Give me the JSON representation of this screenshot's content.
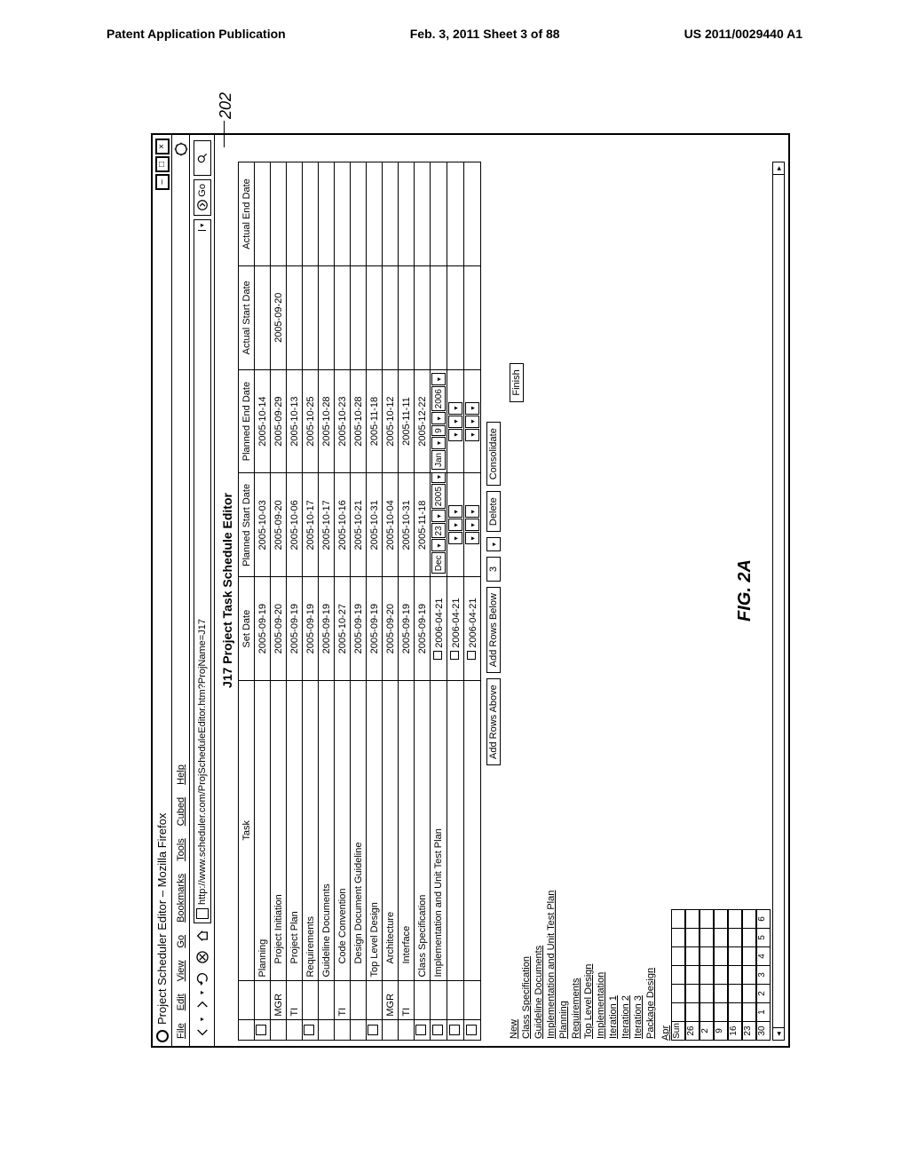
{
  "page_header": {
    "left": "Patent Application Publication",
    "center": "Feb. 3, 2011  Sheet 3 of 88",
    "right": "US 2011/0029440 A1"
  },
  "figure_label": "FIG. 2A",
  "reference_numeral": "202",
  "browser": {
    "title": "Project Scheduler Editor – Mozilla Firefox",
    "menu": [
      "File",
      "Edit",
      "View",
      "Go",
      "Bookmarks",
      "Tools",
      "Cubed",
      "Help"
    ],
    "url": "http://www.scheduler.com/ProjScheduleEditor.htm?ProjName=J17",
    "go_label": "Go"
  },
  "editor": {
    "title": "J17 Project Task Schedule Editor",
    "headers": {
      "task": "Task",
      "set_date": "Set Date",
      "planned_start": "Planned Start Date",
      "planned_end": "Planned End Date",
      "actual_start": "Actual Start Date",
      "actual_end": "Actual End Date"
    },
    "rows": [
      {
        "chk": true,
        "cat": "",
        "task": "Planning",
        "set": "2005-09-19",
        "pstart": "2005-10-03",
        "pend": "2005-10-14",
        "astart": "",
        "aend": ""
      },
      {
        "chk": false,
        "cat": "MGR",
        "task": "Project Initiation",
        "set": "2005-09-20",
        "pstart": "2005-09-20",
        "pend": "2005-09-29",
        "astart": "2005-09-20",
        "aend": ""
      },
      {
        "chk": false,
        "cat": "TI",
        "task": "Project Plan",
        "set": "2005-09-19",
        "pstart": "2005-10-06",
        "pend": "2005-10-13",
        "astart": "",
        "aend": ""
      },
      {
        "chk": true,
        "cat": "",
        "task": "Requirements",
        "set": "2005-09-19",
        "pstart": "2005-10-17",
        "pend": "2005-10-25",
        "astart": "",
        "aend": ""
      },
      {
        "chk": false,
        "cat": "",
        "task": "Guideline Documents",
        "set": "2005-09-19",
        "pstart": "2005-10-17",
        "pend": "2005-10-28",
        "astart": "",
        "aend": ""
      },
      {
        "chk": false,
        "cat": "TI",
        "task": "Code Convention",
        "set": "2005-10-27",
        "pstart": "2005-10-16",
        "pend": "2005-10-23",
        "astart": "",
        "aend": ""
      },
      {
        "chk": false,
        "cat": "",
        "task": "Design Document Guideline",
        "set": "2005-09-19",
        "pstart": "2005-10-21",
        "pend": "2005-10-28",
        "astart": "",
        "aend": ""
      },
      {
        "chk": true,
        "cat": "",
        "task": "Top Level Design",
        "set": "2005-09-19",
        "pstart": "2005-10-31",
        "pend": "2005-11-18",
        "astart": "",
        "aend": ""
      },
      {
        "chk": false,
        "cat": "MGR",
        "task": "Architecture",
        "set": "2005-09-20",
        "pstart": "2005-10-04",
        "pend": "2005-10-12",
        "astart": "",
        "aend": ""
      },
      {
        "chk": false,
        "cat": "TI",
        "task": "Interface",
        "set": "2005-09-19",
        "pstart": "2005-10-31",
        "pend": "2005-11-11",
        "astart": "",
        "aend": ""
      },
      {
        "chk": true,
        "cat": "",
        "task": "Class Specification",
        "set": "2005-09-19",
        "pstart": "2005-11-18",
        "pend": "2005-12-22",
        "astart": "",
        "aend": ""
      }
    ],
    "date_row_label": "Implementation and Unit Test Plan",
    "date_row_set": "2006-04-21",
    "date_segments": {
      "month": "Dec",
      "day": "23",
      "year": "2005",
      "month2": "Jan",
      "day2": "9",
      "year2": "2006"
    },
    "extra_rows": [
      {
        "set": "2006-04-21"
      },
      {
        "set": "2006-04-21"
      }
    ],
    "buttons": {
      "add_above": "Add Rows Above",
      "add_below": "Add Rows Below",
      "count": "3",
      "delete": "Delete",
      "consolidate": "Consolidate",
      "finish": "Finish"
    },
    "links": [
      "New",
      "Class Specification",
      "Guideline Documents",
      "Implementation and Unit Test Plan",
      "Planning",
      "Requirements",
      "Top Level Design",
      "Implementation",
      "Iteration 1",
      "Iteration 2",
      "Iteration 3",
      "Package Design"
    ],
    "calendar": {
      "month": "Apr",
      "header": [
        "Sun",
        "",
        "",
        "",
        "",
        "",
        ""
      ],
      "rows": [
        [
          "26",
          "",
          "",
          "",
          "",
          "",
          ""
        ],
        [
          "2",
          "",
          "",
          "",
          "",
          "",
          ""
        ],
        [
          "9",
          "",
          "",
          "",
          "",
          "",
          ""
        ],
        [
          "16",
          "",
          "",
          "",
          "",
          "",
          ""
        ],
        [
          "23",
          "",
          "",
          "",
          "",
          "",
          ""
        ],
        [
          "30",
          "1",
          "2",
          "3",
          "4",
          "5",
          "6"
        ]
      ]
    }
  },
  "colors": {
    "line": "#000000",
    "bg": "#ffffff"
  }
}
